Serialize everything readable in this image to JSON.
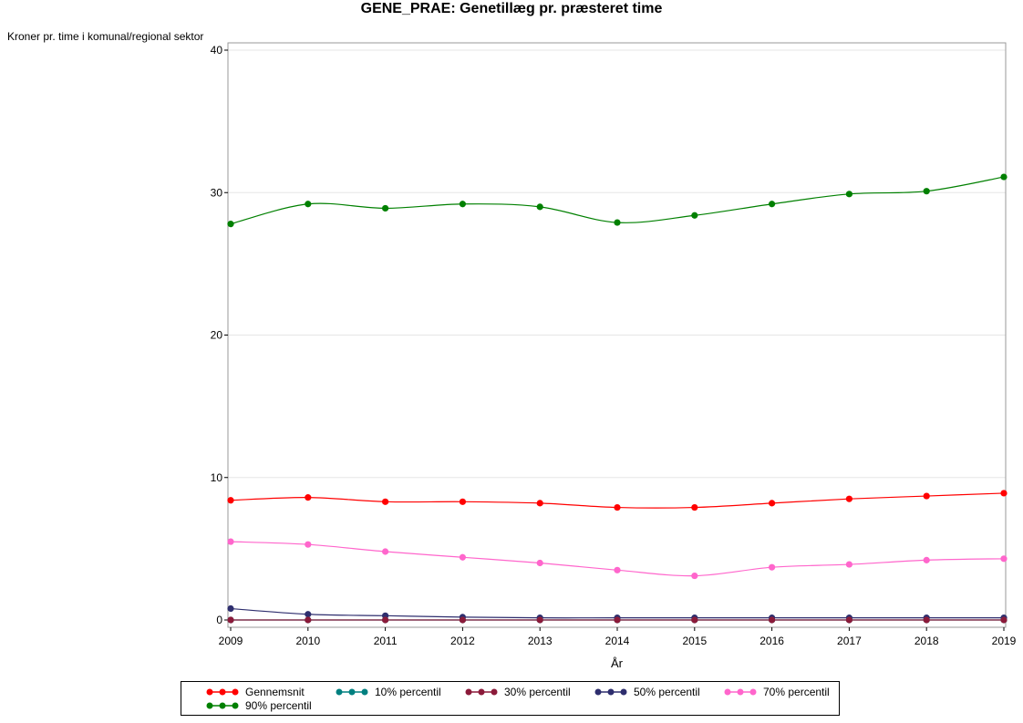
{
  "chart_data": {
    "type": "line",
    "title": "GENE_PRAE: Genetillæg pr. præsteret time",
    "ylabel": "Kroner pr. time i komunal/regional sektor",
    "xlabel": "År",
    "x": [
      2009,
      2010,
      2011,
      2012,
      2013,
      2014,
      2015,
      2016,
      2017,
      2018,
      2019
    ],
    "xlim": [
      2009,
      2019
    ],
    "ylim": [
      0,
      40
    ],
    "yticks": [
      0,
      10,
      20,
      30,
      40
    ],
    "grid": "horizontal",
    "legend_position": "bottom",
    "series": [
      {
        "name": "Gennemsnit",
        "color": "#ff0000",
        "values": [
          8.4,
          8.6,
          8.3,
          8.3,
          8.2,
          7.9,
          7.9,
          8.2,
          8.5,
          8.7,
          8.9
        ]
      },
      {
        "name": "10% percentil",
        "color": "#008080",
        "values": [
          0,
          0,
          0,
          0,
          0,
          0,
          0,
          0,
          0,
          0,
          0
        ]
      },
      {
        "name": "30% percentil",
        "color": "#8b1a3a",
        "values": [
          0,
          0,
          0,
          0,
          0,
          0,
          0,
          0,
          0,
          0,
          0
        ]
      },
      {
        "name": "50% percentil",
        "color": "#2e2e6e",
        "values": [
          0.8,
          0.4,
          0.3,
          0.2,
          0.15,
          0.15,
          0.15,
          0.15,
          0.15,
          0.15,
          0.15
        ]
      },
      {
        "name": "70% percentil",
        "color": "#ff66cc",
        "values": [
          5.5,
          5.3,
          4.8,
          4.4,
          4.0,
          3.5,
          3.1,
          3.7,
          3.9,
          4.2,
          4.3
        ]
      },
      {
        "name": "90% percentil",
        "color": "#008000",
        "values": [
          27.8,
          29.2,
          28.9,
          29.2,
          29.0,
          27.9,
          28.4,
          29.2,
          29.9,
          30.1,
          31.1
        ]
      }
    ]
  }
}
